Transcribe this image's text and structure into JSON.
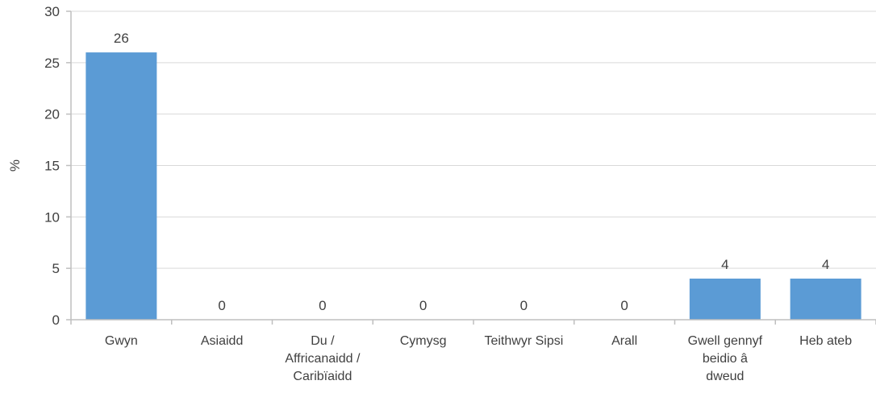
{
  "chart_data": {
    "type": "bar",
    "categories": [
      [
        "Gwyn"
      ],
      [
        "Asiaidd"
      ],
      [
        "Du /",
        "Affricanaidd /",
        "Caribïaidd"
      ],
      [
        "Cymysg"
      ],
      [
        "Teithwyr Sipsi"
      ],
      [
        "Arall"
      ],
      [
        "Gwell gennyf",
        "beidio â",
        "dweud"
      ],
      [
        "Heb ateb"
      ]
    ],
    "values": [
      26,
      0,
      0,
      0,
      0,
      0,
      4,
      4
    ],
    "data_labels": [
      "26",
      "0",
      "0",
      "0",
      "0",
      "0",
      "4",
      "4"
    ],
    "title": "",
    "xlabel": "",
    "ylabel": "%",
    "ylim": [
      0,
      30
    ],
    "yticks": [
      0,
      5,
      10,
      15,
      20,
      25,
      30
    ],
    "grid": true,
    "legend": "none",
    "bar_color": "#5b9bd5",
    "grid_color": "#d9d9d9",
    "axis_color": "#bfbfbf"
  }
}
